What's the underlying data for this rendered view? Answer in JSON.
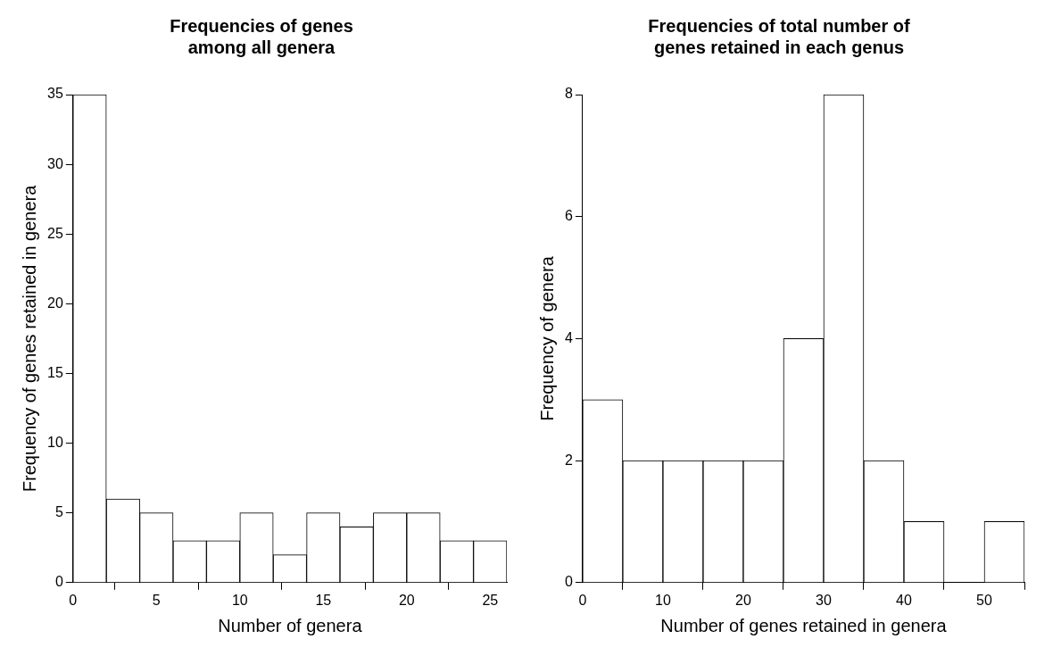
{
  "chart_data": [
    {
      "type": "histogram",
      "title": "Frequencies of genes among all genera",
      "xlabel": "Number of genera",
      "ylabel": "Frequency of genes retained in genera",
      "bins": [
        0,
        2,
        4,
        6,
        8,
        10,
        12,
        14,
        16,
        18,
        20,
        22,
        24,
        26
      ],
      "values": [
        35,
        6,
        5,
        3,
        3,
        5,
        2,
        5,
        4,
        5,
        5,
        3,
        3
      ],
      "color": "#ffffff",
      "xlim": [
        0,
        26
      ],
      "xticks": [
        0,
        5,
        10,
        15,
        20,
        25
      ],
      "ylim": [
        0,
        35
      ],
      "yticks": [
        0,
        5,
        10,
        15,
        20,
        25,
        30,
        35
      ],
      "grid": false,
      "legend": false
    },
    {
      "type": "histogram",
      "title": "Frequencies of total number of genes retained in each genus",
      "xlabel": "Number of genes retained in genera",
      "ylabel": "Frequency of genera",
      "bins": [
        0,
        5,
        10,
        15,
        20,
        25,
        30,
        35,
        40,
        45,
        50,
        55
      ],
      "values": [
        3,
        2,
        2,
        2,
        2,
        4,
        8,
        2,
        1,
        0,
        1
      ],
      "color": "#ffffff",
      "xlim": [
        0,
        55
      ],
      "xticks": [
        0,
        10,
        20,
        30,
        40,
        50
      ],
      "ylim": [
        0,
        8
      ],
      "yticks": [
        0,
        2,
        4,
        6,
        8
      ],
      "grid": false,
      "legend": false
    }
  ]
}
